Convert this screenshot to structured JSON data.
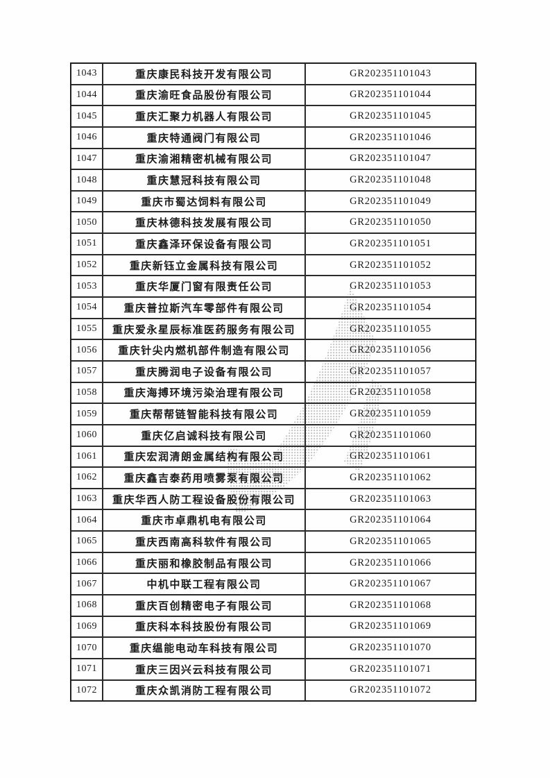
{
  "page": {
    "background": "#ffffff",
    "type": "scanned-certificate-list"
  },
  "colors": {
    "border": "#2a2a2a",
    "text": "#1b1b1b",
    "watermark_dot": "#6f6f6f"
  },
  "watermark": {
    "description": "halftone dotted swoosh scan artifact"
  },
  "table": {
    "columns": [
      "serial_number",
      "company_name",
      "certificate_number"
    ],
    "rows": [
      {
        "no": "1043",
        "name": "重庆康民科技开发有限公司",
        "cert": "GR202351101043"
      },
      {
        "no": "1044",
        "name": "重庆渝旺食品股份有限公司",
        "cert": "GR202351101044"
      },
      {
        "no": "1045",
        "name": "重庆汇聚力机器人有限公司",
        "cert": "GR202351101045"
      },
      {
        "no": "1046",
        "name": "重庆特通阀门有限公司",
        "cert": "GR202351101046"
      },
      {
        "no": "1047",
        "name": "重庆渝湘精密机械有限公司",
        "cert": "GR202351101047"
      },
      {
        "no": "1048",
        "name": "重庆慧冠科技有限公司",
        "cert": "GR202351101048"
      },
      {
        "no": "1049",
        "name": "重庆市蜀达饲料有限公司",
        "cert": "GR202351101049"
      },
      {
        "no": "1050",
        "name": "重庆林德科技发展有限公司",
        "cert": "GR202351101050"
      },
      {
        "no": "1051",
        "name": "重庆鑫泽环保设备有限公司",
        "cert": "GR202351101051"
      },
      {
        "no": "1052",
        "name": "重庆新钰立金属科技有限公司",
        "cert": "GR202351101052"
      },
      {
        "no": "1053",
        "name": "重庆华厦门窗有限责任公司",
        "cert": "GR202351101053"
      },
      {
        "no": "1054",
        "name": "重庆普拉斯汽车零部件有限公司",
        "cert": "GR202351101054"
      },
      {
        "no": "1055",
        "name": "重庆爱永星辰标准医药服务有限公司",
        "cert": "GR202351101055"
      },
      {
        "no": "1056",
        "name": "重庆针尖内燃机部件制造有限公司",
        "cert": "GR202351101056"
      },
      {
        "no": "1057",
        "name": "重庆腾润电子设备有限公司",
        "cert": "GR202351101057"
      },
      {
        "no": "1058",
        "name": "重庆海搏环境污染治理有限公司",
        "cert": "GR202351101058"
      },
      {
        "no": "1059",
        "name": "重庆帮帮链智能科技有限公司",
        "cert": "GR202351101059"
      },
      {
        "no": "1060",
        "name": "重庆亿启诚科技有限公司",
        "cert": "GR202351101060"
      },
      {
        "no": "1061",
        "name": "重庆宏润清朗金属结构有限公司",
        "cert": "GR202351101061"
      },
      {
        "no": "1062",
        "name": "重庆鑫吉泰药用喷雾泵有限公司",
        "cert": "GR202351101062"
      },
      {
        "no": "1063",
        "name": "重庆华西人防工程设备股份有限公司",
        "cert": "GR202351101063"
      },
      {
        "no": "1064",
        "name": "重庆市卓鼎机电有限公司",
        "cert": "GR202351101064"
      },
      {
        "no": "1065",
        "name": "重庆西南高科软件有限公司",
        "cert": "GR202351101065"
      },
      {
        "no": "1066",
        "name": "重庆丽和橡胶制品有限公司",
        "cert": "GR202351101066"
      },
      {
        "no": "1067",
        "name": "中机中联工程有限公司",
        "cert": "GR202351101067"
      },
      {
        "no": "1068",
        "name": "重庆百创精密电子有限公司",
        "cert": "GR202351101068"
      },
      {
        "no": "1069",
        "name": "重庆科本科技股份有限公司",
        "cert": "GR202351101069"
      },
      {
        "no": "1070",
        "name": "重庆缊能电动车科技有限公司",
        "cert": "GR202351101070"
      },
      {
        "no": "1071",
        "name": "重庆三因兴云科技有限公司",
        "cert": "GR202351101071"
      },
      {
        "no": "1072",
        "name": "重庆众凯消防工程有限公司",
        "cert": "GR202351101072"
      }
    ]
  }
}
